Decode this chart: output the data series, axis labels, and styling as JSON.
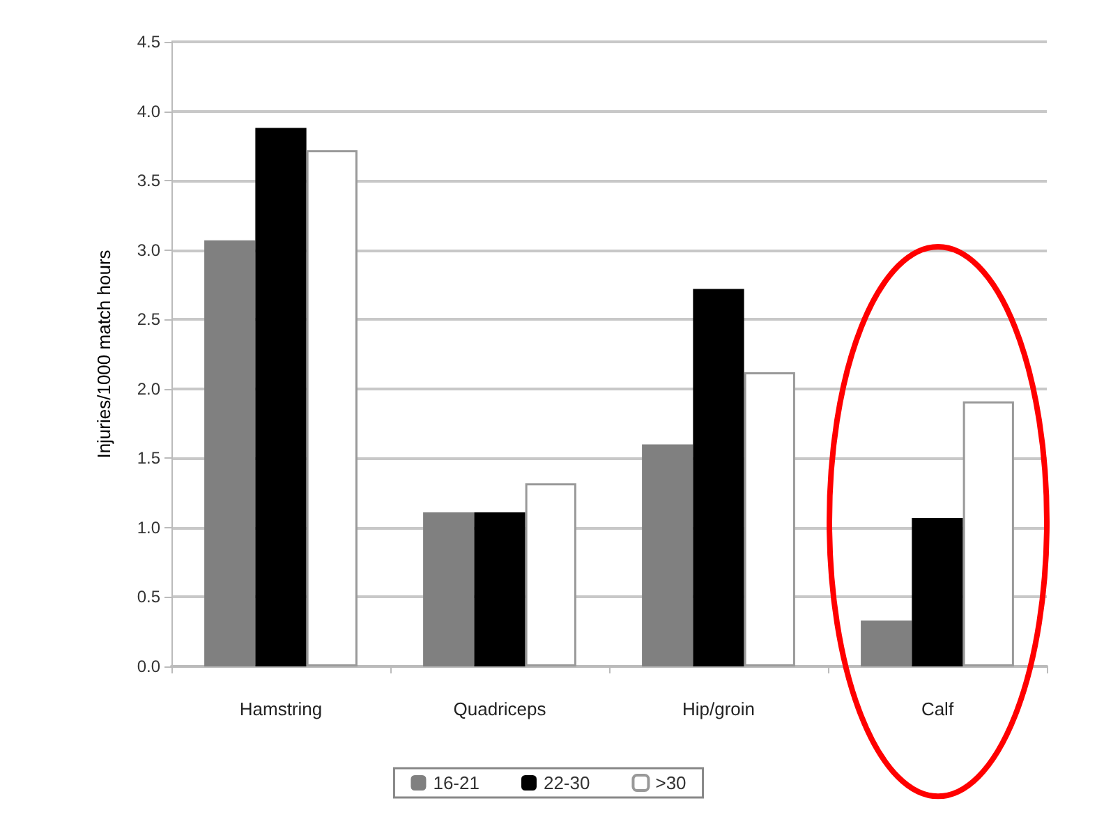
{
  "chart_data": {
    "type": "bar",
    "ylabel": "Injuries/1000 match hours",
    "categories": [
      "Hamstring",
      "Quadriceps",
      "Hip/groin",
      "Calf"
    ],
    "series": [
      {
        "name": "16-21",
        "color": "#808080",
        "values": [
          3.07,
          1.11,
          1.6,
          0.33
        ]
      },
      {
        "name": "22-30",
        "color": "#000000",
        "values": [
          3.88,
          1.11,
          2.72,
          1.07
        ]
      },
      {
        "name": ">30",
        "color": "#ffffff",
        "values": [
          3.72,
          1.32,
          2.12,
          1.91
        ]
      }
    ],
    "ylim": [
      0,
      4.5
    ],
    "yticks": [
      {
        "value": 0,
        "label": "0.0"
      },
      {
        "value": 0.5,
        "label": "0.5"
      },
      {
        "value": 1,
        "label": "1.0"
      },
      {
        "value": 1.5,
        "label": "1.5"
      },
      {
        "value": 2,
        "label": "2.0"
      },
      {
        "value": 2.5,
        "label": "2.5"
      },
      {
        "value": 3,
        "label": "3.0"
      },
      {
        "value": 3.5,
        "label": "3.5"
      },
      {
        "value": 4,
        "label": "4.0"
      },
      {
        "value": 4.5,
        "label": "4.5"
      }
    ],
    "grid": true,
    "legend": "bottom"
  }
}
